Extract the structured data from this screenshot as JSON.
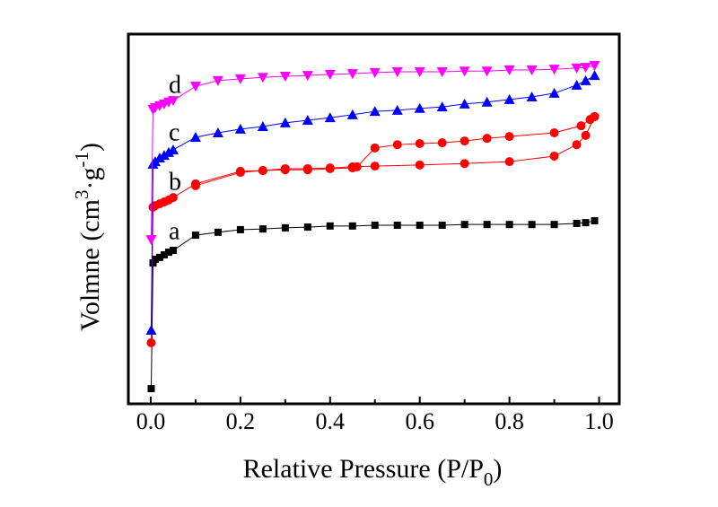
{
  "chart_data": {
    "type": "line",
    "title": "",
    "xlabel": "Relative Pressure (P/P",
    "xlabel_sub": "0",
    "xlabel_end": ")",
    "ylabel": "Volmne (cm",
    "ylabel_sup1": "3",
    "ylabel_mid": "·g",
    "ylabel_sup2": "-1",
    "ylabel_end": ")",
    "xlim": [
      -0.05,
      1.045
    ],
    "ylim": [
      0,
      100
    ],
    "y_units_note": "arbitrary (no y tick labels shown)",
    "xticks": [
      "0.0",
      "0.2",
      "0.4",
      "0.6",
      "0.8",
      "1.0"
    ],
    "xtick_values": [
      0.0,
      0.2,
      0.4,
      0.6,
      0.8,
      1.0
    ],
    "grid": false,
    "legend": "none",
    "series": [
      {
        "name": "a",
        "color": "#000000",
        "marker": "square",
        "x": [
          0.001,
          0.005,
          0.01,
          0.02,
          0.03,
          0.04,
          0.05,
          0.1,
          0.15,
          0.2,
          0.25,
          0.3,
          0.35,
          0.4,
          0.45,
          0.5,
          0.55,
          0.6,
          0.65,
          0.7,
          0.75,
          0.8,
          0.85,
          0.9,
          0.95,
          0.97,
          0.99
        ],
        "y": [
          4.1,
          38.1,
          39.1,
          39.6,
          40.3,
          41.0,
          41.5,
          45.6,
          46.4,
          47.1,
          47.3,
          47.6,
          47.8,
          48.1,
          48.1,
          48.3,
          48.3,
          48.3,
          48.3,
          48.5,
          48.5,
          48.5,
          48.5,
          48.5,
          48.8,
          49.0,
          49.5
        ]
      },
      {
        "name": "b",
        "color": "#ff0000",
        "marker": "circle",
        "x": [
          0.001,
          0.005,
          0.01,
          0.02,
          0.03,
          0.04,
          0.05,
          0.1,
          0.2,
          0.25,
          0.3,
          0.35,
          0.4,
          0.45,
          0.5,
          0.6,
          0.7,
          0.8,
          0.9,
          0.95,
          0.97,
          0.99
        ],
        "y": [
          16.5,
          53.2,
          53.6,
          54.1,
          54.6,
          55.1,
          55.8,
          59.5,
          62.9,
          63.1,
          63.6,
          63.6,
          63.8,
          64.1,
          64.3,
          64.6,
          65.0,
          65.5,
          67.0,
          70.1,
          72.6,
          77.7
        ],
        "desorption_x": [
          0.99,
          0.98,
          0.96,
          0.9,
          0.8,
          0.75,
          0.7,
          0.65,
          0.6,
          0.55,
          0.5,
          0.46,
          0.45,
          0.4,
          0.35,
          0.3,
          0.25,
          0.2,
          0.1
        ],
        "desorption_y": [
          77.7,
          76.9,
          75.2,
          73.3,
          72.3,
          71.8,
          71.1,
          70.6,
          70.4,
          70.1,
          69.2,
          64.1,
          63.8,
          63.6,
          63.3,
          63.3,
          63.1,
          62.6,
          59.0
        ]
      },
      {
        "name": "c",
        "color": "#0000ff",
        "marker": "triangle-up",
        "x": [
          0.001,
          0.005,
          0.01,
          0.02,
          0.03,
          0.04,
          0.05,
          0.1,
          0.15,
          0.2,
          0.25,
          0.3,
          0.35,
          0.4,
          0.45,
          0.5,
          0.55,
          0.6,
          0.65,
          0.7,
          0.75,
          0.8,
          0.85,
          0.9,
          0.95,
          0.97,
          0.99
        ],
        "y": [
          19.9,
          64.8,
          65.5,
          66.5,
          67.2,
          68.0,
          68.7,
          72.1,
          73.3,
          74.3,
          75.0,
          76.0,
          76.7,
          77.4,
          78.2,
          79.1,
          79.4,
          79.9,
          80.3,
          81.1,
          81.6,
          82.3,
          83.0,
          84.0,
          86.2,
          87.4,
          88.8
        ]
      },
      {
        "name": "d",
        "color": "#ff00ff",
        "marker": "triangle-down",
        "x": [
          0.001,
          0.005,
          0.01,
          0.02,
          0.03,
          0.04,
          0.05,
          0.1,
          0.15,
          0.2,
          0.25,
          0.3,
          0.35,
          0.4,
          0.45,
          0.5,
          0.55,
          0.6,
          0.65,
          0.7,
          0.75,
          0.8,
          0.85,
          0.9,
          0.95,
          0.97,
          0.99
        ],
        "y": [
          44.4,
          79.6,
          80.1,
          80.6,
          81.1,
          81.6,
          82.0,
          85.9,
          87.4,
          87.9,
          88.3,
          88.6,
          88.8,
          89.1,
          89.3,
          89.6,
          89.8,
          89.8,
          89.8,
          90.0,
          90.0,
          90.3,
          90.3,
          90.5,
          90.8,
          91.0,
          91.5
        ]
      }
    ],
    "annotations": [
      {
        "text": "a",
        "x": 0.05,
        "y": 46.5
      },
      {
        "text": "b",
        "x": 0.05,
        "y": 59.8
      },
      {
        "text": "c",
        "x": 0.05,
        "y": 73.2
      },
      {
        "text": "d",
        "x": 0.05,
        "y": 86.0
      }
    ]
  }
}
